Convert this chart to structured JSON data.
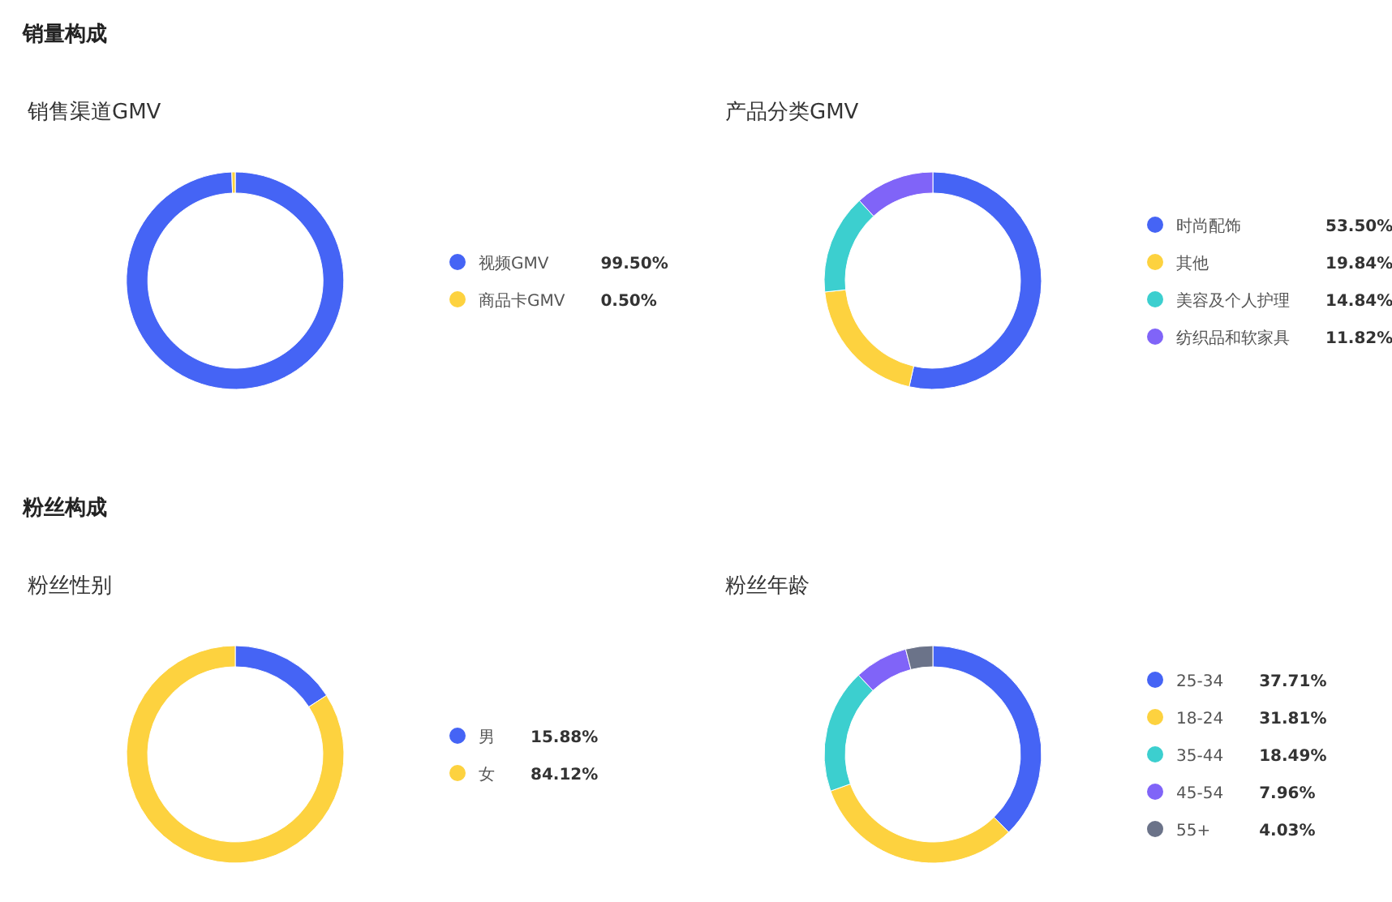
{
  "chart_data": [
    {
      "type": "donut",
      "annotations": [
        "销量构成"
      ],
      "title": "销售渠道GMV",
      "categories": [
        "视频GMV",
        "商品卡GMV"
      ],
      "values": [
        99.5,
        0.5
      ],
      "colors": [
        "#4564f5",
        "#fdd23f"
      ],
      "value_labels": [
        "99.50%",
        "0.50%"
      ],
      "legend": "right"
    },
    {
      "type": "donut",
      "title": "产品分类GMV",
      "categories": [
        "时尚配饰",
        "其他",
        "美容及个人护理",
        "纺织品和软家具"
      ],
      "values": [
        53.5,
        19.84,
        14.84,
        11.82
      ],
      "colors": [
        "#4564f5",
        "#fdd23f",
        "#3ccfcf",
        "#8064f8"
      ],
      "value_labels": [
        "53.50%",
        "19.84%",
        "14.84%",
        "11.82%"
      ],
      "legend": "right"
    },
    {
      "type": "donut",
      "annotations": [
        "粉丝构成"
      ],
      "title": "粉丝性别",
      "categories": [
        "男",
        "女"
      ],
      "values": [
        15.88,
        84.12
      ],
      "colors": [
        "#4564f5",
        "#fdd23f"
      ],
      "value_labels": [
        "15.88%",
        "84.12%"
      ],
      "legend": "right"
    },
    {
      "type": "donut",
      "title": "粉丝年龄",
      "categories": [
        "25-34",
        "18-24",
        "35-44",
        "45-54",
        "55+"
      ],
      "values": [
        37.71,
        31.81,
        18.49,
        7.96,
        4.03
      ],
      "colors": [
        "#4564f5",
        "#fdd23f",
        "#3ccfcf",
        "#8064f8",
        "#6b7389"
      ],
      "value_labels": [
        "37.71%",
        "31.81%",
        "18.49%",
        "7.96%",
        "4.03%"
      ],
      "legend": "right"
    }
  ]
}
